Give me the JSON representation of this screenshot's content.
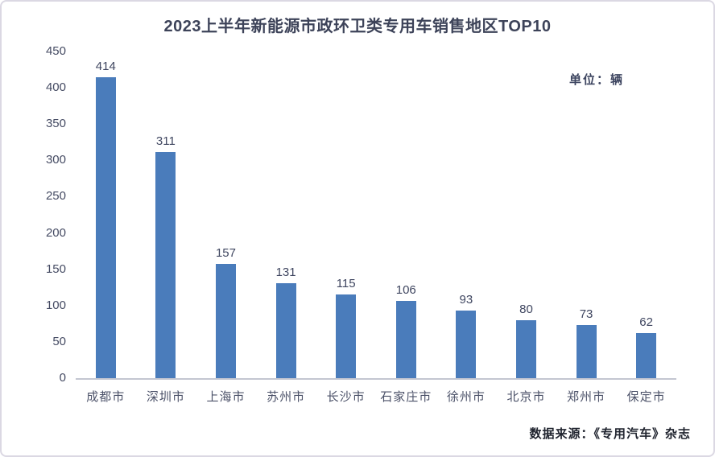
{
  "page": {
    "title": "2023上半年新能源市政环卫类专用车销售地区TOP10",
    "unit_label": "单位：辆",
    "source_note": "数据来源：《专用汽车》杂志"
  },
  "chart_data": {
    "type": "bar",
    "title": "2023上半年新能源市政环卫类专用车销售地区TOP10",
    "categories": [
      "成都市",
      "深圳市",
      "上海市",
      "苏州市",
      "长沙市",
      "石家庄市",
      "徐州市",
      "北京市",
      "郑州市",
      "保定市"
    ],
    "values": [
      414,
      311,
      157,
      131,
      115,
      106,
      93,
      80,
      73,
      62
    ],
    "xlabel": "",
    "ylabel": "单位：辆",
    "ylim": [
      0,
      450
    ],
    "ytick_interval": 50,
    "grid": false,
    "legend": "none",
    "data_labels": true
  },
  "colors": {
    "bar": "#4A7CBB",
    "title_text": "#3D4359",
    "axis_text": "#454B63",
    "axis_line": "#C3C6D1",
    "source_text": "#20242F",
    "border": "#DBD8E3",
    "background": "#FFFFFF"
  }
}
